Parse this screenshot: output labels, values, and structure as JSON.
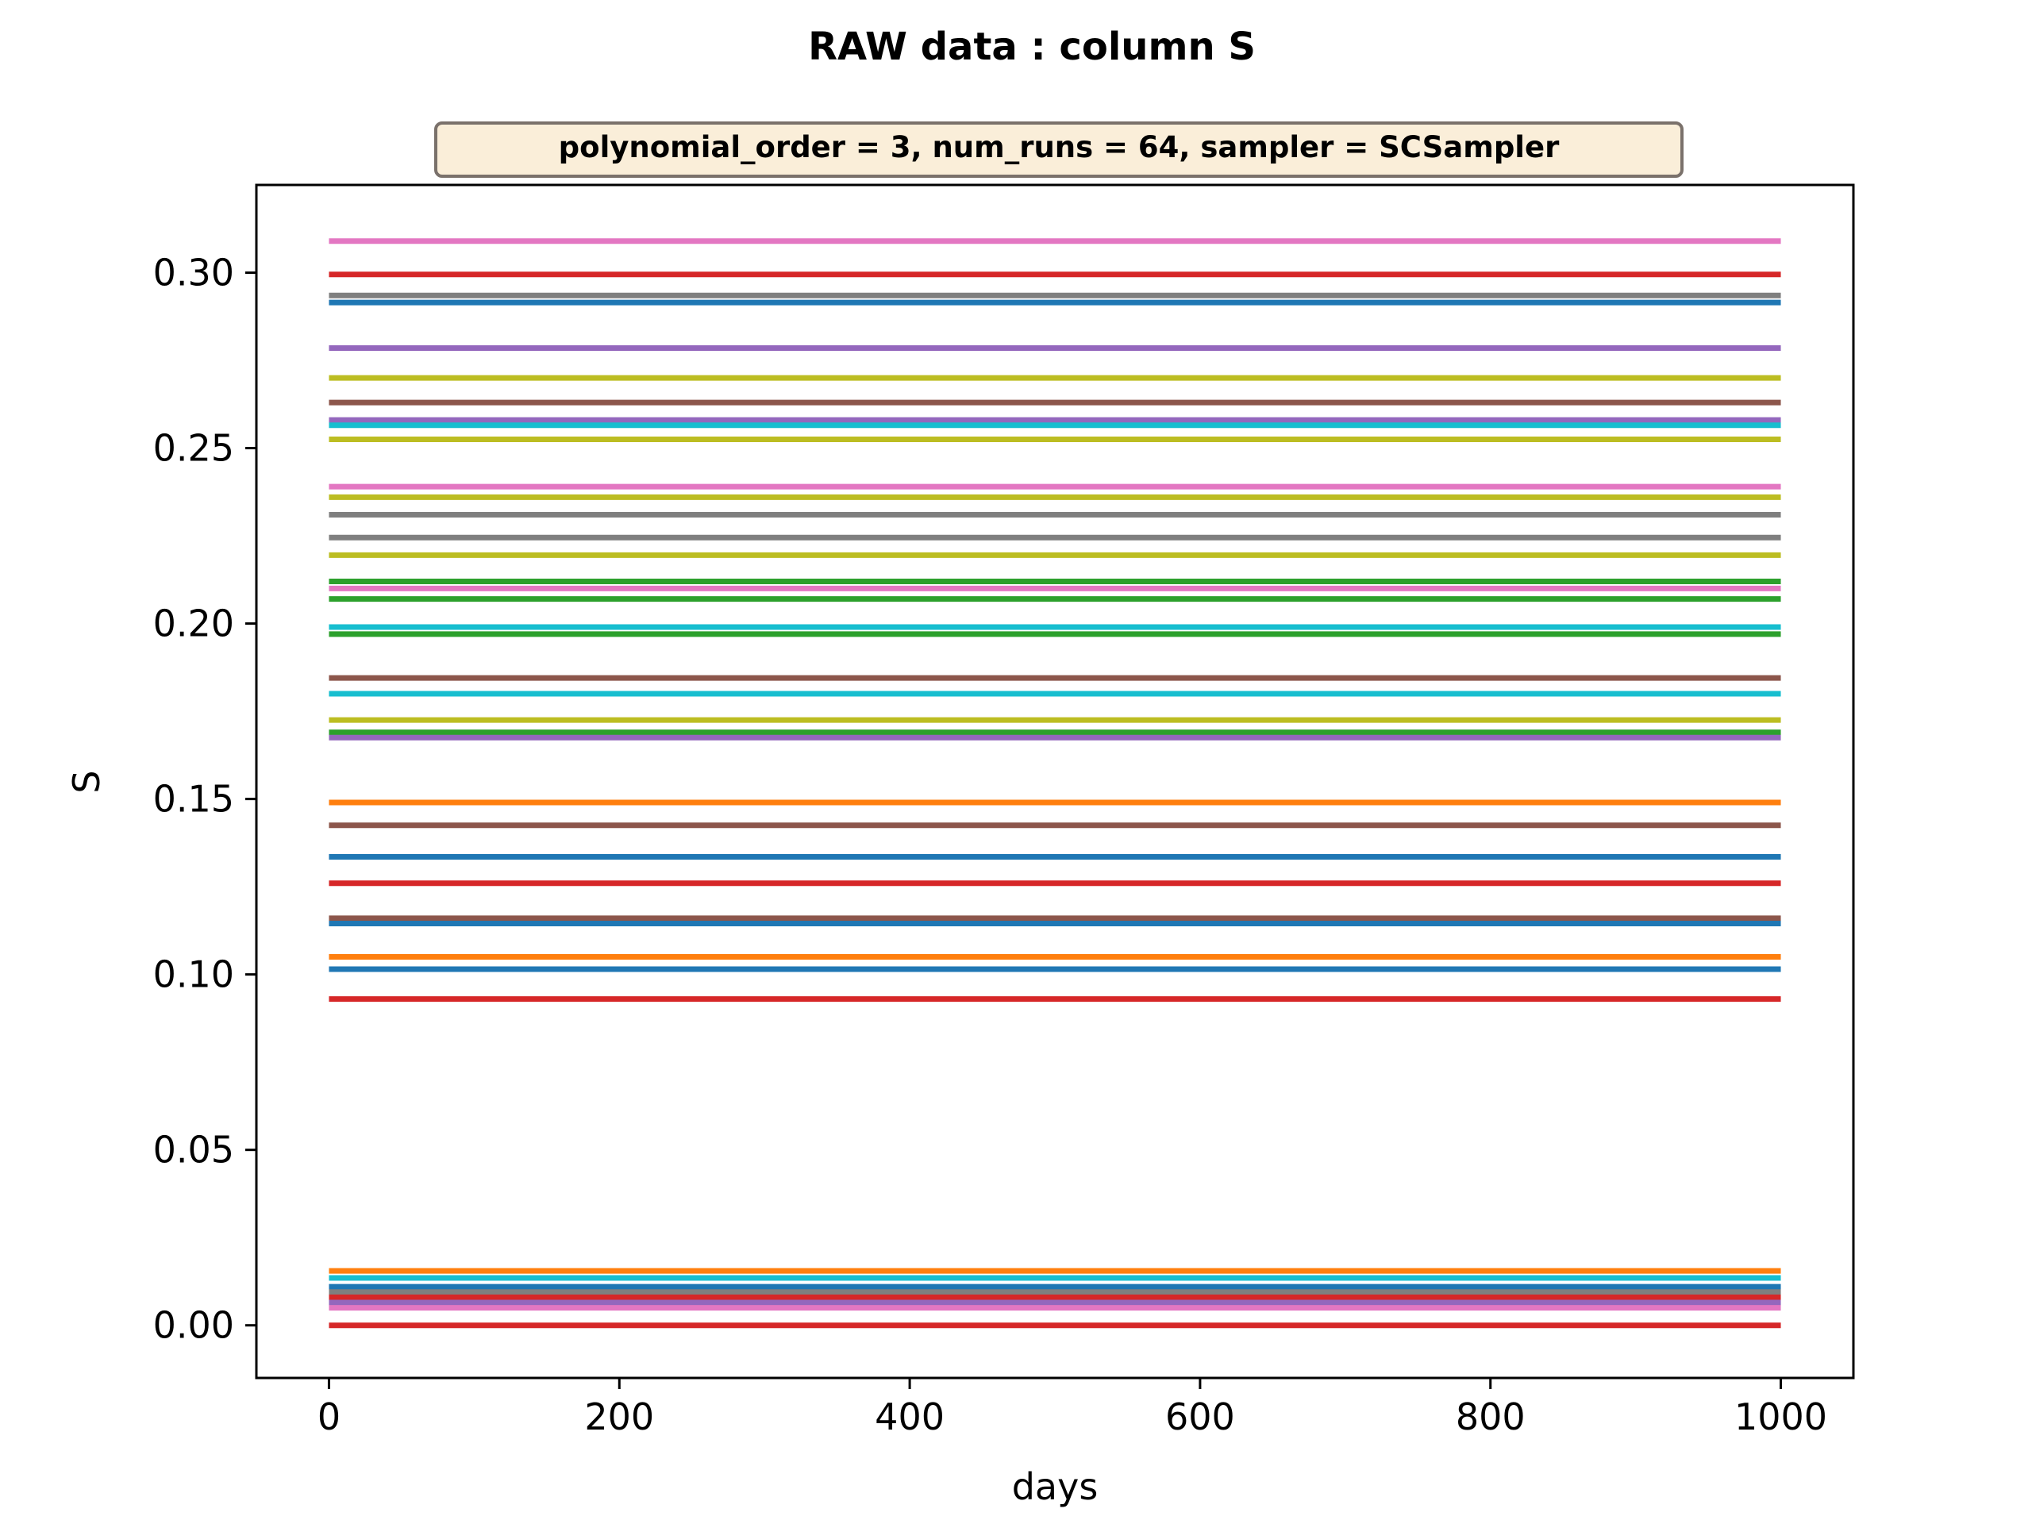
{
  "chart_data": {
    "type": "line",
    "title": "RAW data : column S",
    "subtitle": "polynomial_order = 3, num_runs = 64, sampler = SCSampler",
    "xlabel": "days",
    "ylabel": "S",
    "xlim": [
      -50,
      1050
    ],
    "ylim": [
      -0.015,
      0.325
    ],
    "xticks": [
      0,
      200,
      400,
      600,
      800,
      1000
    ],
    "xtick_labels": [
      "0",
      "200",
      "400",
      "600",
      "800",
      "1000"
    ],
    "yticks": [
      0.0,
      0.05,
      0.1,
      0.15,
      0.2,
      0.25,
      0.3
    ],
    "ytick_labels": [
      "0.00",
      "0.05",
      "0.10",
      "0.15",
      "0.20",
      "0.25",
      "0.30"
    ],
    "grid": false,
    "legend": "none",
    "x": [
      0,
      1000
    ],
    "series": [
      {
        "color": "#e377c2",
        "value": 0.309
      },
      {
        "color": "#d62728",
        "value": 0.2995
      },
      {
        "color": "#7f7f7f",
        "value": 0.2935
      },
      {
        "color": "#1f77b4",
        "value": 0.2915
      },
      {
        "color": "#9467bd",
        "value": 0.2785
      },
      {
        "color": "#bcbd22",
        "value": 0.27
      },
      {
        "color": "#8c564b",
        "value": 0.263
      },
      {
        "color": "#9467bd",
        "value": 0.258
      },
      {
        "color": "#17becf",
        "value": 0.2565
      },
      {
        "color": "#bcbd22",
        "value": 0.2525
      },
      {
        "color": "#e377c2",
        "value": 0.239
      },
      {
        "color": "#bcbd22",
        "value": 0.236
      },
      {
        "color": "#7f7f7f",
        "value": 0.231
      },
      {
        "color": "#7f7f7f",
        "value": 0.2245
      },
      {
        "color": "#bcbd22",
        "value": 0.2195
      },
      {
        "color": "#2ca02c",
        "value": 0.212
      },
      {
        "color": "#e377c2",
        "value": 0.21
      },
      {
        "color": "#2ca02c",
        "value": 0.207
      },
      {
        "color": "#17becf",
        "value": 0.199
      },
      {
        "color": "#2ca02c",
        "value": 0.197
      },
      {
        "color": "#8c564b",
        "value": 0.1845
      },
      {
        "color": "#17becf",
        "value": 0.18
      },
      {
        "color": "#bcbd22",
        "value": 0.1725
      },
      {
        "color": "#2ca02c",
        "value": 0.169
      },
      {
        "color": "#9467bd",
        "value": 0.1675
      },
      {
        "color": "#ff7f0e",
        "value": 0.149
      },
      {
        "color": "#8c564b",
        "value": 0.1425
      },
      {
        "color": "#1f77b4",
        "value": 0.1335
      },
      {
        "color": "#d62728",
        "value": 0.126
      },
      {
        "color": "#8c564b",
        "value": 0.116
      },
      {
        "color": "#1f77b4",
        "value": 0.1145
      },
      {
        "color": "#ff7f0e",
        "value": 0.105
      },
      {
        "color": "#1f77b4",
        "value": 0.1015
      },
      {
        "color": "#d62728",
        "value": 0.093
      },
      {
        "color": "#ff7f0e",
        "value": 0.0155
      },
      {
        "color": "#17becf",
        "value": 0.0135
      },
      {
        "color": "#1f77b4",
        "value": 0.011
      },
      {
        "color": "#7f7f7f",
        "value": 0.0095
      },
      {
        "color": "#d62728",
        "value": 0.008
      },
      {
        "color": "#9467bd",
        "value": 0.0065
      },
      {
        "color": "#e377c2",
        "value": 0.005
      },
      {
        "color": "#d62728",
        "value": 0.0
      }
    ]
  }
}
